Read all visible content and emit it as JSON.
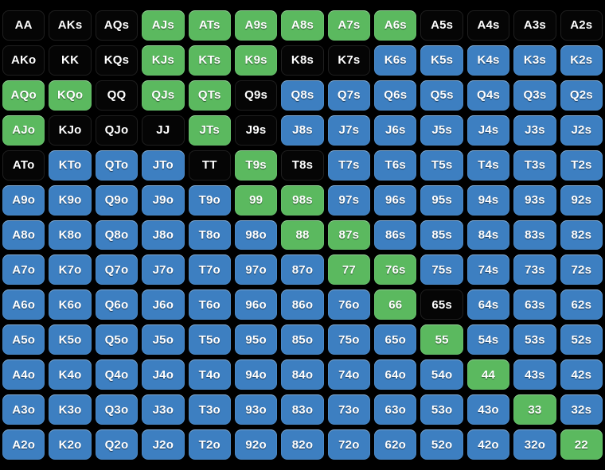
{
  "app": {
    "description_label": "Poker starting-hand range matrix, 13x13 grid"
  },
  "colors": {
    "raise": "#5bb95f",
    "call": "#3d7fc1",
    "fold": "#050505",
    "background": "#000000",
    "text": "#ffffff"
  },
  "legend_states": [
    "raise",
    "call",
    "fold"
  ],
  "grid": {
    "rows_count": 13,
    "cols_count": 13,
    "rows": [
      [
        [
          "AA",
          "fold"
        ],
        [
          "AKs",
          "fold"
        ],
        [
          "AQs",
          "fold"
        ],
        [
          "AJs",
          "raise"
        ],
        [
          "ATs",
          "raise"
        ],
        [
          "A9s",
          "raise"
        ],
        [
          "A8s",
          "raise"
        ],
        [
          "A7s",
          "raise"
        ],
        [
          "A6s",
          "raise"
        ],
        [
          "A5s",
          "fold"
        ],
        [
          "A4s",
          "fold"
        ],
        [
          "A3s",
          "fold"
        ],
        [
          "A2s",
          "fold"
        ]
      ],
      [
        [
          "AKo",
          "fold"
        ],
        [
          "KK",
          "fold"
        ],
        [
          "KQs",
          "fold"
        ],
        [
          "KJs",
          "raise"
        ],
        [
          "KTs",
          "raise"
        ],
        [
          "K9s",
          "raise"
        ],
        [
          "K8s",
          "fold"
        ],
        [
          "K7s",
          "fold"
        ],
        [
          "K6s",
          "call"
        ],
        [
          "K5s",
          "call"
        ],
        [
          "K4s",
          "call"
        ],
        [
          "K3s",
          "call"
        ],
        [
          "K2s",
          "call"
        ]
      ],
      [
        [
          "AQo",
          "raise"
        ],
        [
          "KQo",
          "raise"
        ],
        [
          "QQ",
          "fold"
        ],
        [
          "QJs",
          "raise"
        ],
        [
          "QTs",
          "raise"
        ],
        [
          "Q9s",
          "fold"
        ],
        [
          "Q8s",
          "call"
        ],
        [
          "Q7s",
          "call"
        ],
        [
          "Q6s",
          "call"
        ],
        [
          "Q5s",
          "call"
        ],
        [
          "Q4s",
          "call"
        ],
        [
          "Q3s",
          "call"
        ],
        [
          "Q2s",
          "call"
        ]
      ],
      [
        [
          "AJo",
          "raise"
        ],
        [
          "KJo",
          "fold"
        ],
        [
          "QJo",
          "fold"
        ],
        [
          "JJ",
          "fold"
        ],
        [
          "JTs",
          "raise"
        ],
        [
          "J9s",
          "fold"
        ],
        [
          "J8s",
          "call"
        ],
        [
          "J7s",
          "call"
        ],
        [
          "J6s",
          "call"
        ],
        [
          "J5s",
          "call"
        ],
        [
          "J4s",
          "call"
        ],
        [
          "J3s",
          "call"
        ],
        [
          "J2s",
          "call"
        ]
      ],
      [
        [
          "ATo",
          "fold"
        ],
        [
          "KTo",
          "call"
        ],
        [
          "QTo",
          "call"
        ],
        [
          "JTo",
          "call"
        ],
        [
          "TT",
          "fold"
        ],
        [
          "T9s",
          "raise"
        ],
        [
          "T8s",
          "fold"
        ],
        [
          "T7s",
          "call"
        ],
        [
          "T6s",
          "call"
        ],
        [
          "T5s",
          "call"
        ],
        [
          "T4s",
          "call"
        ],
        [
          "T3s",
          "call"
        ],
        [
          "T2s",
          "call"
        ]
      ],
      [
        [
          "A9o",
          "call"
        ],
        [
          "K9o",
          "call"
        ],
        [
          "Q9o",
          "call"
        ],
        [
          "J9o",
          "call"
        ],
        [
          "T9o",
          "call"
        ],
        [
          "99",
          "raise"
        ],
        [
          "98s",
          "raise"
        ],
        [
          "97s",
          "call"
        ],
        [
          "96s",
          "call"
        ],
        [
          "95s",
          "call"
        ],
        [
          "94s",
          "call"
        ],
        [
          "93s",
          "call"
        ],
        [
          "92s",
          "call"
        ]
      ],
      [
        [
          "A8o",
          "call"
        ],
        [
          "K8o",
          "call"
        ],
        [
          "Q8o",
          "call"
        ],
        [
          "J8o",
          "call"
        ],
        [
          "T8o",
          "call"
        ],
        [
          "98o",
          "call"
        ],
        [
          "88",
          "raise"
        ],
        [
          "87s",
          "raise"
        ],
        [
          "86s",
          "call"
        ],
        [
          "85s",
          "call"
        ],
        [
          "84s",
          "call"
        ],
        [
          "83s",
          "call"
        ],
        [
          "82s",
          "call"
        ]
      ],
      [
        [
          "A7o",
          "call"
        ],
        [
          "K7o",
          "call"
        ],
        [
          "Q7o",
          "call"
        ],
        [
          "J7o",
          "call"
        ],
        [
          "T7o",
          "call"
        ],
        [
          "97o",
          "call"
        ],
        [
          "87o",
          "call"
        ],
        [
          "77",
          "raise"
        ],
        [
          "76s",
          "raise"
        ],
        [
          "75s",
          "call"
        ],
        [
          "74s",
          "call"
        ],
        [
          "73s",
          "call"
        ],
        [
          "72s",
          "call"
        ]
      ],
      [
        [
          "A6o",
          "call"
        ],
        [
          "K6o",
          "call"
        ],
        [
          "Q6o",
          "call"
        ],
        [
          "J6o",
          "call"
        ],
        [
          "T6o",
          "call"
        ],
        [
          "96o",
          "call"
        ],
        [
          "86o",
          "call"
        ],
        [
          "76o",
          "call"
        ],
        [
          "66",
          "raise"
        ],
        [
          "65s",
          "fold"
        ],
        [
          "64s",
          "call"
        ],
        [
          "63s",
          "call"
        ],
        [
          "62s",
          "call"
        ]
      ],
      [
        [
          "A5o",
          "call"
        ],
        [
          "K5o",
          "call"
        ],
        [
          "Q5o",
          "call"
        ],
        [
          "J5o",
          "call"
        ],
        [
          "T5o",
          "call"
        ],
        [
          "95o",
          "call"
        ],
        [
          "85o",
          "call"
        ],
        [
          "75o",
          "call"
        ],
        [
          "65o",
          "call"
        ],
        [
          "55",
          "raise"
        ],
        [
          "54s",
          "call"
        ],
        [
          "53s",
          "call"
        ],
        [
          "52s",
          "call"
        ]
      ],
      [
        [
          "A4o",
          "call"
        ],
        [
          "K4o",
          "call"
        ],
        [
          "Q4o",
          "call"
        ],
        [
          "J4o",
          "call"
        ],
        [
          "T4o",
          "call"
        ],
        [
          "94o",
          "call"
        ],
        [
          "84o",
          "call"
        ],
        [
          "74o",
          "call"
        ],
        [
          "64o",
          "call"
        ],
        [
          "54o",
          "call"
        ],
        [
          "44",
          "raise"
        ],
        [
          "43s",
          "call"
        ],
        [
          "42s",
          "call"
        ]
      ],
      [
        [
          "A3o",
          "call"
        ],
        [
          "K3o",
          "call"
        ],
        [
          "Q3o",
          "call"
        ],
        [
          "J3o",
          "call"
        ],
        [
          "T3o",
          "call"
        ],
        [
          "93o",
          "call"
        ],
        [
          "83o",
          "call"
        ],
        [
          "73o",
          "call"
        ],
        [
          "63o",
          "call"
        ],
        [
          "53o",
          "call"
        ],
        [
          "43o",
          "call"
        ],
        [
          "33",
          "raise"
        ],
        [
          "32s",
          "call"
        ]
      ],
      [
        [
          "A2o",
          "call"
        ],
        [
          "K2o",
          "call"
        ],
        [
          "Q2o",
          "call"
        ],
        [
          "J2o",
          "call"
        ],
        [
          "T2o",
          "call"
        ],
        [
          "92o",
          "call"
        ],
        [
          "82o",
          "call"
        ],
        [
          "72o",
          "call"
        ],
        [
          "62o",
          "call"
        ],
        [
          "52o",
          "call"
        ],
        [
          "42o",
          "call"
        ],
        [
          "32o",
          "call"
        ],
        [
          "22",
          "raise"
        ]
      ]
    ]
  }
}
